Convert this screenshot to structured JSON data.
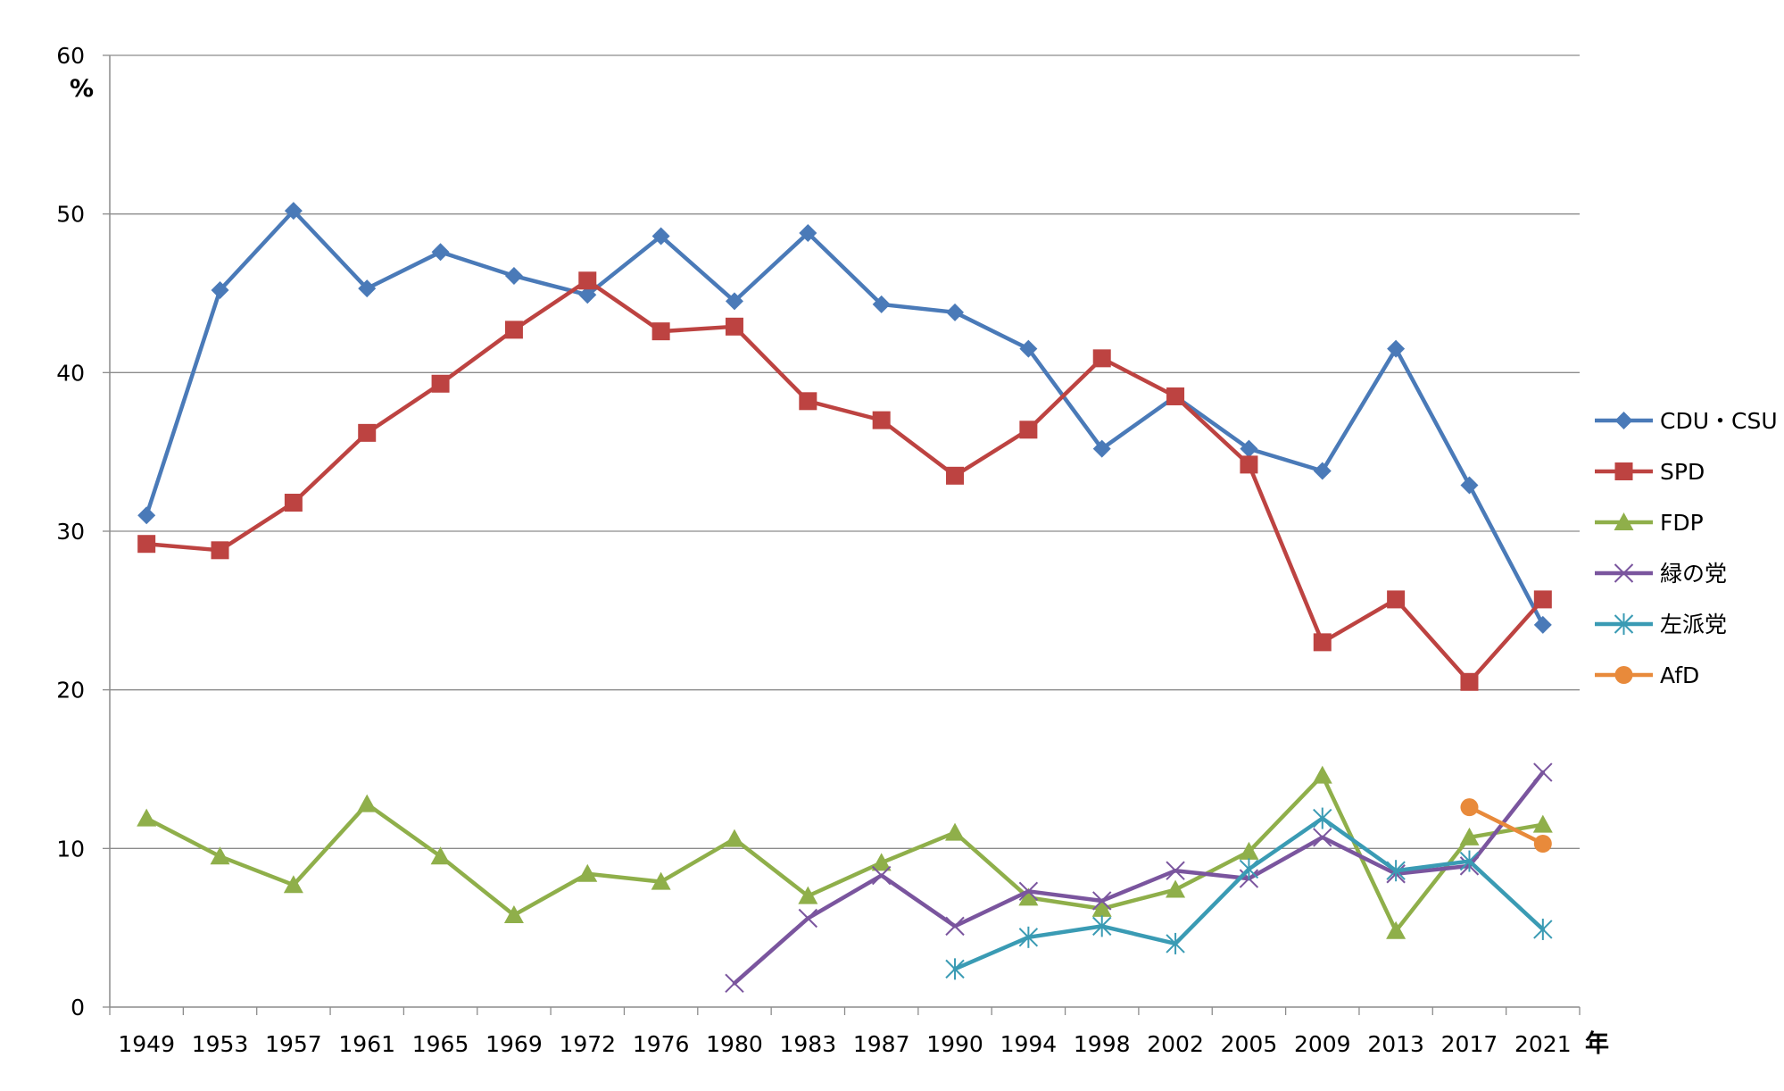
{
  "chart_data": {
    "type": "line",
    "ylabel": "%",
    "xlabel": "年",
    "ylim": [
      0,
      60
    ],
    "yticks": [
      0,
      10,
      20,
      30,
      40,
      50,
      60
    ],
    "grid": true,
    "legend_position": "right",
    "categories": [
      "1949",
      "1953",
      "1957",
      "1961",
      "1965",
      "1969",
      "1972",
      "1976",
      "1980",
      "1983",
      "1987",
      "1990",
      "1994",
      "1998",
      "2002",
      "2005",
      "2009",
      "2013",
      "2017",
      "2021"
    ],
    "series": [
      {
        "name": "CDU・CSU",
        "color": "#4a7ab8",
        "marker": "diamond",
        "values": [
          31.0,
          45.2,
          50.2,
          45.3,
          47.6,
          46.1,
          44.9,
          48.6,
          44.5,
          48.8,
          44.3,
          43.8,
          41.5,
          35.2,
          38.5,
          35.2,
          33.8,
          41.5,
          32.9,
          24.1
        ]
      },
      {
        "name": "SPD",
        "color": "#bd4341",
        "marker": "square",
        "values": [
          29.2,
          28.8,
          31.8,
          36.2,
          39.3,
          42.7,
          45.8,
          42.6,
          42.9,
          38.2,
          37.0,
          33.5,
          36.4,
          40.9,
          38.5,
          34.2,
          23.0,
          25.7,
          20.5,
          25.7
        ]
      },
      {
        "name": "FDP",
        "color": "#8faf4a",
        "marker": "triangle",
        "values": [
          11.9,
          9.5,
          7.7,
          12.8,
          9.5,
          5.8,
          8.4,
          7.9,
          10.6,
          7.0,
          9.1,
          11.0,
          6.9,
          6.2,
          7.4,
          9.8,
          14.6,
          4.8,
          10.7,
          11.5
        ]
      },
      {
        "name": "緑の党",
        "color": "#7a559e",
        "marker": "x",
        "values": [
          null,
          null,
          null,
          null,
          null,
          null,
          null,
          null,
          1.5,
          5.6,
          8.3,
          5.1,
          7.3,
          6.7,
          8.6,
          8.1,
          10.7,
          8.4,
          8.9,
          14.8
        ]
      },
      {
        "name": "左派党",
        "color": "#3a9bb4",
        "marker": "star",
        "values": [
          null,
          null,
          null,
          null,
          null,
          null,
          null,
          null,
          null,
          null,
          null,
          2.4,
          4.4,
          5.1,
          4.0,
          8.7,
          11.9,
          8.6,
          9.2,
          4.9
        ]
      },
      {
        "name": "AfD",
        "color": "#e88a3b",
        "marker": "circle",
        "values": [
          null,
          null,
          null,
          null,
          null,
          null,
          null,
          null,
          null,
          null,
          null,
          null,
          null,
          null,
          null,
          null,
          null,
          null,
          12.6,
          10.3
        ]
      }
    ]
  }
}
